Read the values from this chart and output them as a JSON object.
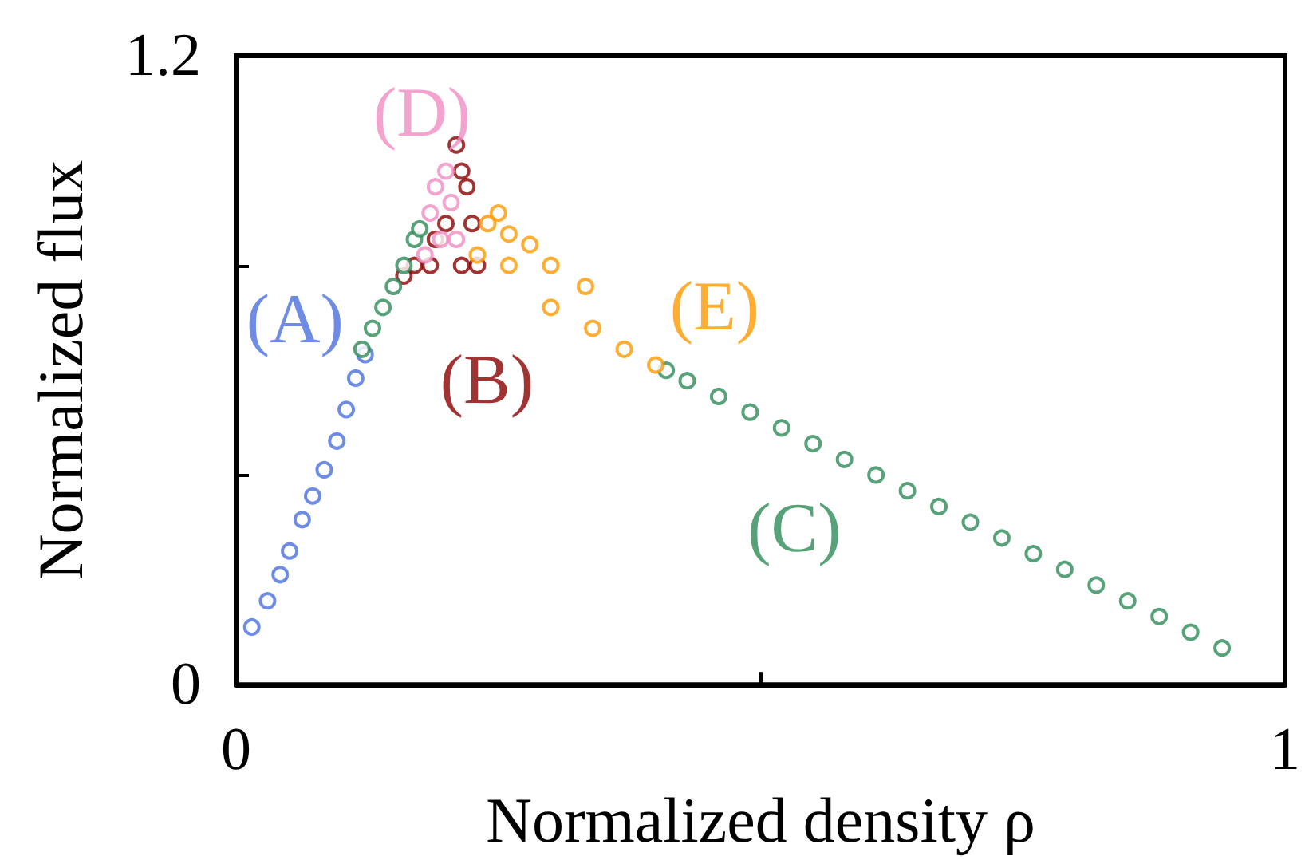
{
  "chart_data": {
    "type": "scatter",
    "xlabel": "Normalized density ρ",
    "ylabel": "Normalized flux",
    "xlim": [
      0,
      1
    ],
    "ylim": [
      0,
      1.2
    ],
    "xticks": [
      0,
      {
        "value": 0.5,
        "label": null
      },
      1
    ],
    "yticks": [
      0,
      {
        "value": 0.4,
        "label": null
      },
      {
        "value": 0.8,
        "label": null
      },
      1.2
    ],
    "marker": "circle",
    "grid": false,
    "legend": false,
    "series": [
      {
        "name": "(A)",
        "color": "#4a6fe0",
        "x": [
          0.015,
          0.03,
          0.042,
          0.051,
          0.063,
          0.073,
          0.084,
          0.096,
          0.105,
          0.114,
          0.123
        ],
        "values": [
          0.11,
          0.16,
          0.21,
          0.255,
          0.315,
          0.36,
          0.41,
          0.465,
          0.525,
          0.585,
          0.63
        ]
      },
      {
        "name": "(B)",
        "color": "#8b0000",
        "x": [
          0.16,
          0.17,
          0.185,
          0.19,
          0.2,
          0.21,
          0.215,
          0.22,
          0.225,
          0.23,
          0.215
        ],
        "values": [
          0.78,
          0.8,
          0.8,
          0.85,
          0.88,
          1.03,
          0.98,
          0.95,
          0.88,
          0.8,
          0.8
        ]
      },
      {
        "name": "(C)",
        "color": "#2e8b57",
        "x": [
          0.12,
          0.13,
          0.14,
          0.15,
          0.16,
          0.17,
          0.175,
          0.41,
          0.43,
          0.46,
          0.49,
          0.52,
          0.55,
          0.58,
          0.61,
          0.64,
          0.67,
          0.7,
          0.73,
          0.76,
          0.79,
          0.82,
          0.85,
          0.88,
          0.91,
          0.94
        ],
        "values": [
          0.64,
          0.68,
          0.72,
          0.76,
          0.8,
          0.85,
          0.87,
          0.6,
          0.58,
          0.55,
          0.52,
          0.49,
          0.46,
          0.43,
          0.4,
          0.37,
          0.34,
          0.31,
          0.28,
          0.25,
          0.22,
          0.19,
          0.16,
          0.13,
          0.1,
          0.07
        ]
      },
      {
        "name": "(D)",
        "color": "#f08cc0",
        "x": [
          0.18,
          0.185,
          0.19,
          0.2,
          0.205,
          0.195,
          0.21
        ],
        "values": [
          0.82,
          0.9,
          0.95,
          0.98,
          0.92,
          0.85,
          0.85
        ]
      },
      {
        "name": "(E)",
        "color": "#ff9900",
        "x": [
          0.23,
          0.24,
          0.25,
          0.26,
          0.28,
          0.3,
          0.333,
          0.26,
          0.3,
          0.34,
          0.37,
          0.4
        ],
        "values": [
          0.82,
          0.88,
          0.9,
          0.86,
          0.84,
          0.8,
          0.76,
          0.8,
          0.72,
          0.68,
          0.64,
          0.61
        ]
      }
    ]
  }
}
